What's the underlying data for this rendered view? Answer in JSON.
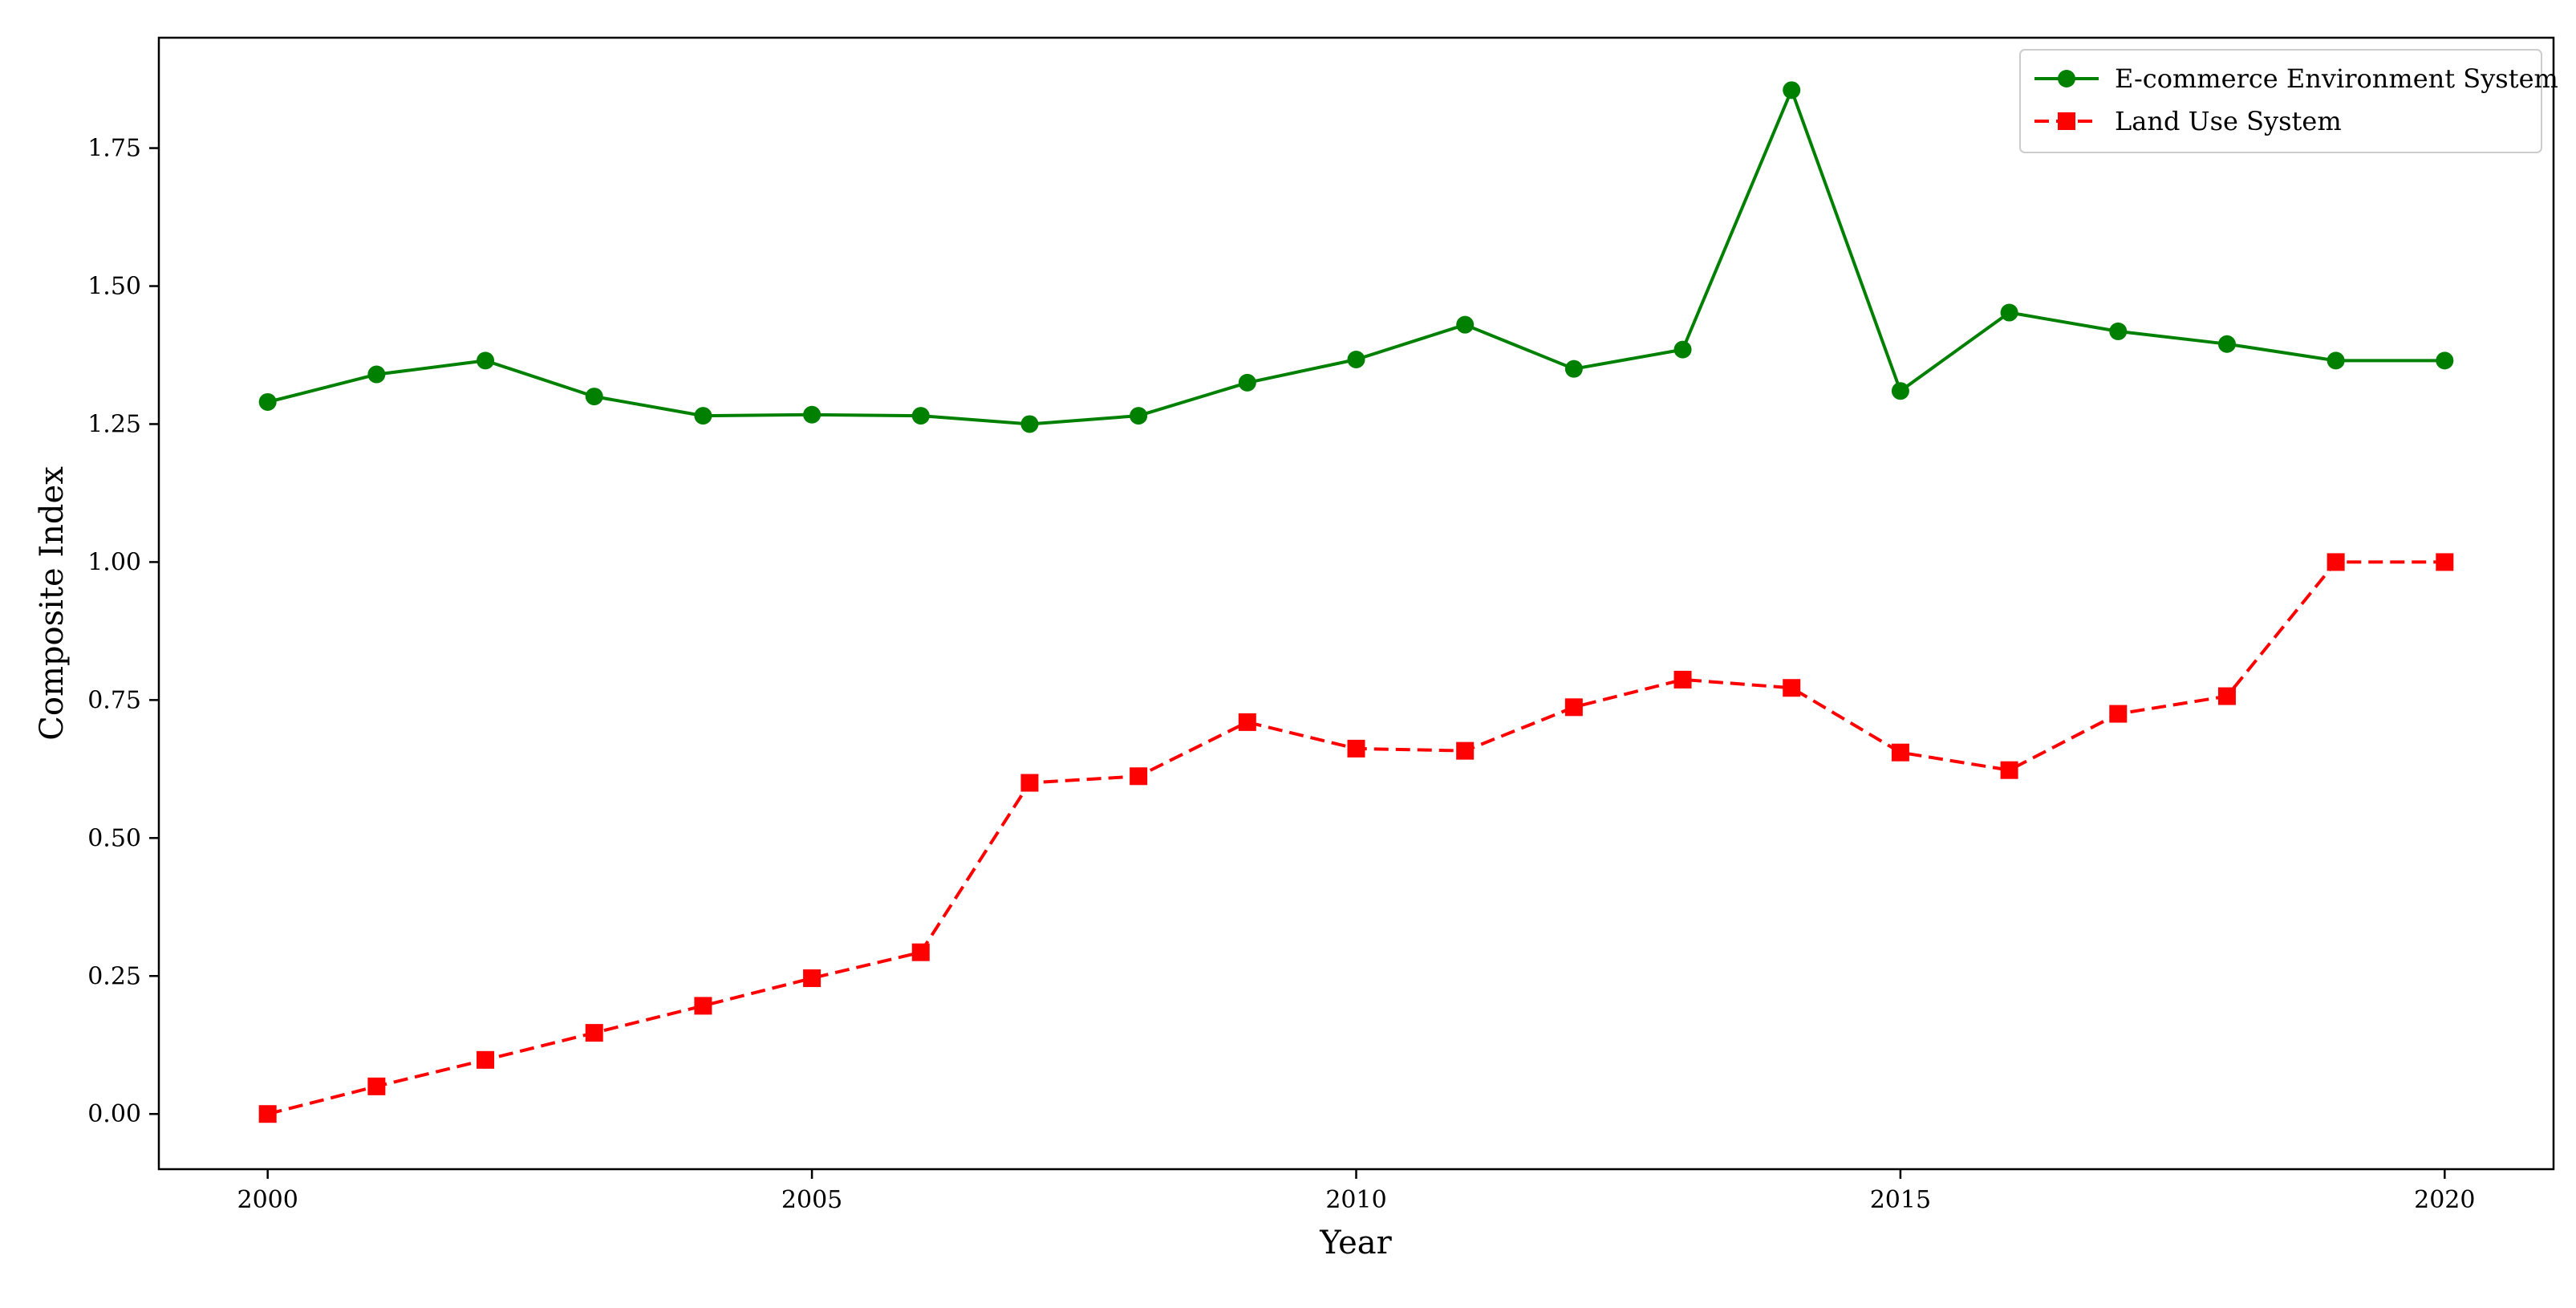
{
  "chart_data": {
    "type": "line",
    "title": "",
    "xlabel": "Year",
    "ylabel": "Composite Index",
    "xlim": [
      1999,
      2021.0
    ],
    "ylim": [
      -0.1,
      1.95
    ],
    "x_ticks": [
      2000,
      2005,
      2010,
      2015,
      2020
    ],
    "x_tick_labels": [
      "2000",
      "2005",
      "2010",
      "2015",
      "2020"
    ],
    "y_ticks": [
      0.0,
      0.25,
      0.5,
      0.75,
      1.0,
      1.25,
      1.5,
      1.75
    ],
    "y_tick_labels": [
      "0.00",
      "0.25",
      "0.50",
      "0.75",
      "1.00",
      "1.25",
      "1.50",
      "1.75"
    ],
    "grid": false,
    "legend_position": "top-right",
    "x": [
      2000,
      2001,
      2002,
      2003,
      2004,
      2005,
      2006,
      2007,
      2008,
      2009,
      2010,
      2011,
      2012,
      2013,
      2014,
      2015,
      2016,
      2017,
      2018,
      2019,
      2020
    ],
    "series": [
      {
        "name": "E-commerce Environment System",
        "color": "#008000",
        "line_style": "solid",
        "marker": "circle",
        "values": [
          1.29,
          1.34,
          1.365,
          1.3,
          1.265,
          1.267,
          1.265,
          1.25,
          1.265,
          1.325,
          1.367,
          1.43,
          1.35,
          1.385,
          1.855,
          1.31,
          1.452,
          1.418,
          1.395,
          1.365,
          1.365
        ]
      },
      {
        "name": "Land Use System",
        "color": "#ff0000",
        "line_style": "dashed",
        "marker": "square",
        "values": [
          0.0,
          0.05,
          0.098,
          0.147,
          0.196,
          0.246,
          0.293,
          0.6,
          0.612,
          0.71,
          0.662,
          0.658,
          0.737,
          0.787,
          0.772,
          0.655,
          0.623,
          0.725,
          0.757,
          1.0,
          1.0
        ]
      }
    ]
  }
}
